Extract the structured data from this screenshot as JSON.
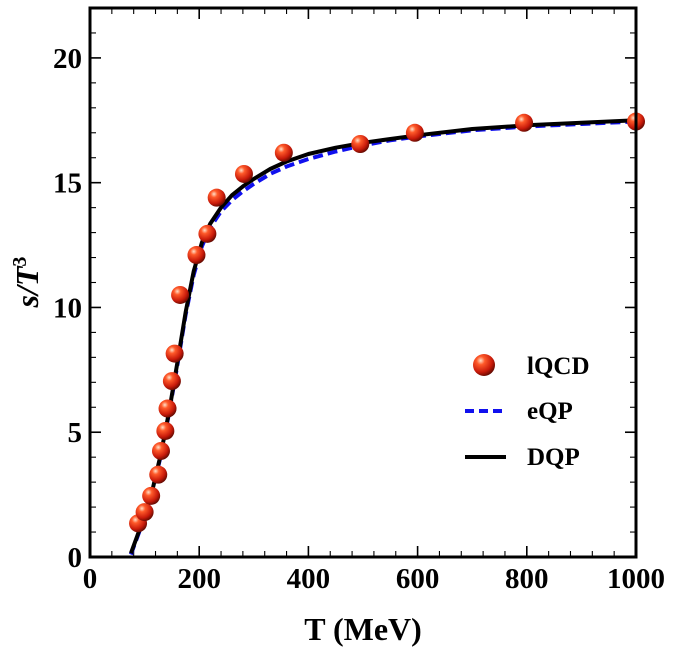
{
  "chart_data": {
    "type": "scatter",
    "title": "",
    "xlabel": "T (MeV)",
    "ylabel": "s/T",
    "ylabel_superscript": "3",
    "xlim": [
      0,
      1000
    ],
    "ylim": [
      0,
      22
    ],
    "x_ticks": [
      0,
      200,
      400,
      600,
      800,
      1000
    ],
    "y_ticks": [
      0,
      5,
      10,
      15,
      20
    ],
    "x_tick_labels": [
      "0",
      "200",
      "400",
      "600",
      "800",
      "1000"
    ],
    "y_tick_labels": [
      "0",
      "5",
      "10",
      "15",
      "20"
    ],
    "legend_position": "right-center",
    "series": [
      {
        "name": "lQCD",
        "kind": "points",
        "color": "#d42a10",
        "x": [
          88,
          100,
          112,
          125,
          130,
          138,
          142,
          150,
          155,
          165,
          195,
          215,
          232,
          282,
          355,
          495,
          595,
          795,
          1000
        ],
        "y": [
          1.35,
          1.8,
          2.45,
          3.3,
          4.25,
          5.05,
          5.95,
          7.05,
          8.15,
          10.5,
          12.1,
          12.95,
          14.4,
          15.35,
          16.2,
          16.55,
          17.0,
          17.4,
          17.45
        ]
      },
      {
        "name": "eQP",
        "kind": "line",
        "style": "dashed",
        "color": "#1010ee",
        "x": [
          75,
          85,
          100,
          115,
          130,
          145,
          160,
          175,
          190,
          205,
          220,
          240,
          260,
          280,
          300,
          330,
          360,
          400,
          450,
          500,
          550,
          600,
          700,
          800,
          900,
          1000
        ],
        "y": [
          0.1,
          0.7,
          1.6,
          2.7,
          4.1,
          5.8,
          7.7,
          9.7,
          11.3,
          12.45,
          13.2,
          13.85,
          14.3,
          14.65,
          14.95,
          15.35,
          15.65,
          15.95,
          16.25,
          16.5,
          16.7,
          16.85,
          17.1,
          17.25,
          17.35,
          17.45
        ]
      },
      {
        "name": "DQP",
        "kind": "line",
        "style": "solid",
        "color": "#000000",
        "x": [
          75,
          85,
          100,
          115,
          130,
          145,
          160,
          175,
          190,
          205,
          220,
          240,
          260,
          280,
          300,
          330,
          360,
          400,
          450,
          500,
          550,
          600,
          700,
          800,
          900,
          1000
        ],
        "y": [
          0.15,
          0.75,
          1.65,
          2.75,
          4.15,
          5.85,
          7.8,
          9.8,
          11.45,
          12.6,
          13.35,
          14.0,
          14.5,
          14.85,
          15.15,
          15.55,
          15.85,
          16.15,
          16.4,
          16.6,
          16.75,
          16.9,
          17.15,
          17.3,
          17.4,
          17.5
        ]
      }
    ]
  }
}
